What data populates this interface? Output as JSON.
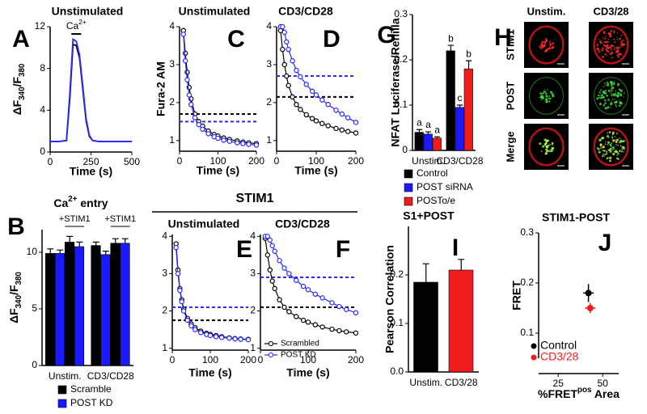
{
  "chart_data": [
    {
      "panel": "A",
      "type": "line",
      "title": "Unstimulated",
      "xlabel": "Time (s)",
      "ylabel": [
        {
          "text": "ΔF"
        },
        {
          "text": "340",
          "pos": "sub"
        },
        {
          "text": "/F"
        },
        {
          "text": "380",
          "pos": "sub"
        }
      ],
      "xlim": [
        0,
        500
      ],
      "xticks": [
        0,
        250,
        500
      ],
      "ylim": [
        0,
        12
      ],
      "yticks": [
        0,
        4,
        8,
        12
      ],
      "markers": false,
      "annotation": {
        "label": [
          {
            "text": "Ca"
          },
          {
            "text": "2+",
            "pos": "sup"
          }
        ],
        "x": [
          130,
          190
        ],
        "y": 11.3
      },
      "series": [
        {
          "color": "#000000",
          "x": [
            0,
            50,
            100,
            120,
            140,
            160,
            180,
            200,
            220,
            240,
            260,
            300,
            400,
            500
          ],
          "values": [
            1,
            1,
            1.1,
            5,
            10.3,
            10.2,
            9,
            6,
            3,
            1.5,
            1.1,
            1,
            1,
            1
          ]
        },
        {
          "color": "#2a2aff",
          "x": [
            0,
            50,
            100,
            120,
            140,
            160,
            180,
            200,
            220,
            240,
            260,
            300,
            400,
            500
          ],
          "values": [
            1,
            1,
            1.1,
            5.5,
            10.8,
            10.6,
            9.3,
            6.3,
            3.2,
            1.6,
            1.1,
            1,
            1,
            1
          ]
        }
      ]
    },
    {
      "panel": "C",
      "type": "line",
      "title": "Unstimulated",
      "xlabel": "Time (s)",
      "ylabel": "Fura-2 AM",
      "xlim": [
        0,
        200
      ],
      "xticks": [
        0,
        100,
        200
      ],
      "ylim": [
        0.72,
        4
      ],
      "yticks": [
        1,
        2,
        3,
        4
      ],
      "markers": true,
      "reference_lines": [
        {
          "value": 1.7,
          "color": "#000000"
        },
        {
          "value": 1.5,
          "color": "#2a2aff"
        }
      ],
      "series": [
        {
          "color": "#000000",
          "x": [
            10,
            15,
            20,
            25,
            30,
            40,
            50,
            60,
            75,
            90,
            100,
            115,
            130,
            150,
            165,
            180,
            200
          ],
          "values": [
            3.9,
            3.3,
            2.8,
            2.4,
            2.1,
            1.7,
            1.5,
            1.38,
            1.25,
            1.16,
            1.12,
            1.07,
            1.03,
            0.99,
            0.96,
            0.94,
            0.92
          ]
        },
        {
          "color": "#2a2aff",
          "x": [
            10,
            15,
            20,
            25,
            30,
            40,
            50,
            60,
            75,
            90,
            100,
            115,
            130,
            150,
            165,
            180,
            200
          ],
          "values": [
            3.8,
            3.1,
            2.6,
            2.2,
            1.95,
            1.6,
            1.42,
            1.3,
            1.18,
            1.1,
            1.06,
            1.01,
            0.98,
            0.94,
            0.92,
            0.9,
            0.88
          ]
        }
      ]
    },
    {
      "panel": "D",
      "type": "line",
      "title": "CD3/CD28",
      "xlabel": "Time (s)",
      "xlim": [
        0,
        200
      ],
      "xticks": [
        0,
        100,
        200
      ],
      "ylim": [
        0.72,
        4
      ],
      "yticks": [
        1,
        2,
        3,
        4
      ],
      "markers": true,
      "reference_lines": [
        {
          "value": 2.15,
          "color": "#000000"
        },
        {
          "value": 2.7,
          "color": "#2a2aff"
        }
      ],
      "series": [
        {
          "color": "#000000",
          "x": [
            10,
            15,
            20,
            25,
            30,
            40,
            50,
            60,
            75,
            90,
            100,
            115,
            130,
            150,
            165,
            180,
            200
          ],
          "values": [
            3.9,
            3.4,
            3.0,
            2.7,
            2.45,
            2.15,
            1.95,
            1.82,
            1.68,
            1.58,
            1.52,
            1.45,
            1.39,
            1.32,
            1.28,
            1.24,
            1.2
          ]
        },
        {
          "color": "#2a2aff",
          "x": [
            10,
            15,
            20,
            25,
            30,
            40,
            50,
            60,
            75,
            90,
            100,
            115,
            130,
            150,
            165,
            180,
            200
          ],
          "values": [
            4.0,
            4.0,
            3.85,
            3.6,
            3.4,
            3.1,
            2.85,
            2.68,
            2.48,
            2.3,
            2.2,
            2.07,
            1.95,
            1.8,
            1.7,
            1.6,
            1.48
          ]
        }
      ]
    },
    {
      "panel": "G",
      "type": "bar",
      "ylabel": "NFAT Luciferase/Renilla",
      "categories": [
        "Unstim.",
        "CD3/CD28"
      ],
      "ylim": [
        0,
        0.3
      ],
      "yticks": [
        0,
        0.1,
        0.2,
        0.3
      ],
      "series": [
        {
          "name": "Control",
          "color": "#000000",
          "values": [
            0.04,
            0.22
          ],
          "errors": [
            0.006,
            0.012
          ],
          "letters": [
            "a",
            "b"
          ]
        },
        {
          "name": "POST siRNA",
          "color": "#1a1aff",
          "values": [
            0.036,
            0.095
          ],
          "errors": [
            0.005,
            0.005
          ],
          "letters": [
            "a",
            "c"
          ]
        },
        {
          "name": "POSTo/e",
          "color": "#ee1c1c",
          "values": [
            0.027,
            0.18
          ],
          "errors": [
            0.003,
            0.018
          ],
          "letters": [
            "a",
            "b"
          ]
        }
      ]
    },
    {
      "panel": "H",
      "type": "image",
      "columns": [
        "Unstim.",
        "CD3/28"
      ],
      "rows": [
        "STIM1",
        "POST",
        "Merge"
      ]
    },
    {
      "panel": "B",
      "type": "bar",
      "title": [
        {
          "text": "Ca"
        },
        {
          "text": "2+",
          "pos": "sup"
        },
        {
          "text": " entry"
        }
      ],
      "ylabel": [
        {
          "text": "ΔF"
        },
        {
          "text": "340",
          "pos": "sub"
        },
        {
          "text": "/F"
        },
        {
          "text": "380",
          "pos": "sub"
        }
      ],
      "categories": [
        "Unstim.",
        "CD3/CD28"
      ],
      "ylim": [
        0,
        12
      ],
      "yticks": [
        0,
        5,
        10
      ],
      "series": [
        {
          "name": "Scramble",
          "color": "#000000",
          "values": [
            9.9,
            10.6
          ],
          "errors": [
            0.4,
            0.3
          ]
        },
        {
          "name": "POST KD",
          "color": "#1a1aff",
          "values": [
            9.9,
            9.8
          ],
          "errors": [
            0.3,
            0.3
          ]
        }
      ],
      "extra_group": {
        "label": "+STIM1",
        "series": [
          {
            "values": [
              10.9,
              10.8
            ],
            "errors": [
              0.5,
              0.4
            ]
          },
          {
            "values": [
              10.5,
              10.8
            ],
            "errors": [
              0.4,
              0.4
            ]
          }
        ]
      }
    },
    {
      "panel": "E",
      "type": "line",
      "group_heading": "STIM1",
      "title": "Unstimulated",
      "xlabel": "Time (s)",
      "xlim": [
        0,
        200
      ],
      "xticks": [
        0,
        100,
        200
      ],
      "ylim": [
        0.95,
        4.05
      ],
      "yticks": [
        1,
        2,
        3,
        4
      ],
      "markers": true,
      "reference_lines": [
        {
          "value": 1.75,
          "color": "#000000"
        },
        {
          "value": 2.1,
          "color": "#2a2aff"
        }
      ],
      "series": [
        {
          "color": "#000000",
          "x": [
            10,
            15,
            20,
            25,
            30,
            40,
            50,
            60,
            75,
            90,
            100,
            115,
            130,
            150,
            165,
            180,
            200
          ],
          "values": [
            3.8,
            3.1,
            2.6,
            2.3,
            2.05,
            1.8,
            1.65,
            1.55,
            1.46,
            1.4,
            1.37,
            1.34,
            1.31,
            1.28,
            1.26,
            1.25,
            1.24
          ]
        },
        {
          "color": "#2a2aff",
          "x": [
            10,
            15,
            20,
            25,
            30,
            40,
            50,
            60,
            75,
            90,
            100,
            115,
            130,
            150,
            165,
            180,
            200
          ],
          "values": [
            3.7,
            3.0,
            2.55,
            2.25,
            2.0,
            1.75,
            1.6,
            1.5,
            1.42,
            1.37,
            1.34,
            1.31,
            1.29,
            1.27,
            1.25,
            1.24,
            1.23
          ]
        }
      ]
    },
    {
      "panel": "F",
      "type": "line",
      "title": "CD3/CD28",
      "xlabel": "Time (s)",
      "xlim": [
        0,
        200
      ],
      "xticks": [
        0,
        100,
        200
      ],
      "ylim": [
        0.95,
        4.05
      ],
      "yticks": [
        1,
        2,
        3,
        4
      ],
      "markers": true,
      "reference_lines": [
        {
          "value": 2.1,
          "color": "#000000"
        },
        {
          "value": 2.9,
          "color": "#2a2aff"
        }
      ],
      "series": [
        {
          "name": "Scrambled",
          "color": "#000000",
          "x": [
            10,
            15,
            20,
            25,
            30,
            40,
            50,
            60,
            75,
            90,
            100,
            115,
            130,
            150,
            165,
            180,
            200
          ],
          "values": [
            3.95,
            3.5,
            3.1,
            2.8,
            2.6,
            2.3,
            2.1,
            1.98,
            1.85,
            1.75,
            1.7,
            1.63,
            1.57,
            1.51,
            1.47,
            1.44,
            1.41
          ]
        },
        {
          "name": "POST KD",
          "color": "#2a2aff",
          "x": [
            10,
            15,
            20,
            25,
            30,
            40,
            50,
            60,
            75,
            90,
            100,
            115,
            130,
            150,
            165,
            180,
            200
          ],
          "values": [
            4.0,
            4.0,
            3.9,
            3.75,
            3.6,
            3.35,
            3.15,
            3.0,
            2.82,
            2.66,
            2.57,
            2.45,
            2.35,
            2.22,
            2.12,
            2.04,
            1.95
          ]
        }
      ]
    },
    {
      "panel": "I",
      "type": "bar",
      "title": "S1+POST",
      "ylabel": "Pearson Correlation",
      "categories": [
        "Unstim.",
        "CD3/28"
      ],
      "ylim": [
        0,
        0.3
      ],
      "yticks": [
        {
          "value": 0,
          "label": "0.0"
        },
        0.1,
        0.2
      ],
      "values": [
        0.185,
        0.21
      ],
      "errors": [
        0.038,
        0.022
      ],
      "colors": [
        "#000000",
        "#ee1c1c"
      ]
    },
    {
      "panel": "J",
      "type": "scatter",
      "title": "STIM1-POST",
      "ylabel": "FRET",
      "xlabel": [
        {
          "text": "%FRET"
        },
        {
          "text": "pos",
          "pos": "sup"
        },
        {
          "text": " Area"
        }
      ],
      "xlim": [
        14,
        59
      ],
      "xticks": [
        25,
        50
      ],
      "ylim": [
        0.05,
        0.3
      ],
      "yticks": [
        0.1,
        0.2,
        0.3
      ],
      "series": [
        {
          "name": "Control",
          "color": "#000000",
          "x": [
            42
          ],
          "values": [
            0.18
          ],
          "xerr": [
            3
          ],
          "yerr": [
            0.018
          ]
        },
        {
          "name": "CD3/28",
          "color": "#ee1c1c",
          "x": [
            43
          ],
          "values": [
            0.15
          ],
          "xerr": [
            3
          ],
          "yerr": [
            0.01
          ]
        }
      ]
    }
  ]
}
